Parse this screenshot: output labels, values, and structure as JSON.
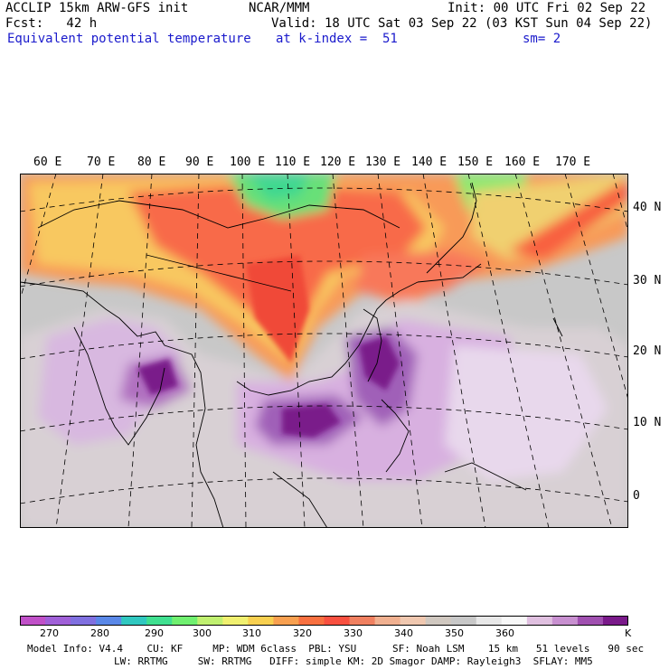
{
  "header": {
    "line1_left": "ACCLIP 15km ARW-GFS init",
    "line1_center": "NCAR/MMM",
    "line1_right": "Init: 00 UTC Fri 02 Sep 22",
    "fcst": "Fcst:   42 h",
    "valid": "Valid: 18 UTC Sat 03 Sep 22 (03 KST Sun 04 Sep 22)",
    "field": "Equivalent potential temperature",
    "level": "at k-index =  51",
    "smooth": "sm= 2"
  },
  "map": {
    "lon_labels": [
      "60 E",
      "70 E",
      "80 E",
      "90 E",
      "100 E",
      "110 E",
      "120 E",
      "130 E",
      "140 E",
      "150 E",
      "160 E",
      "170 E"
    ],
    "lat_labels": [
      "40 N",
      "30 N",
      "20 N",
      "10 N",
      "0"
    ]
  },
  "colorbar": {
    "unit": "K",
    "labels": [
      "270",
      "280",
      "290",
      "300",
      "310",
      "320",
      "330",
      "340",
      "350",
      "360"
    ],
    "colors": [
      "#c050c8",
      "#a060d8",
      "#8070e0",
      "#5a88e8",
      "#30c8c0",
      "#40e090",
      "#70f070",
      "#c0f070",
      "#f0f070",
      "#f8d050",
      "#f8a050",
      "#f87040",
      "#f85040",
      "#f08060",
      "#f0b090",
      "#f0c8b0",
      "#d0c8c0",
      "#c8c8c8",
      "#e8e8e8",
      "#f8f8f8",
      "#e0c0e0",
      "#c890d0",
      "#a050b0",
      "#7a1a8a"
    ]
  },
  "footer": {
    "line1": "Model Info: V4.4    CU: KF     MP: WDM 6class  PBL: YSU      SF: Noah LSM    15 km   51 levels   90 sec",
    "line2": "LW: RRTMG     SW: RRTMG   DIFF: simple KM: 2D Smagor DAMP: Rayleigh3  SFLAY: MM5"
  }
}
